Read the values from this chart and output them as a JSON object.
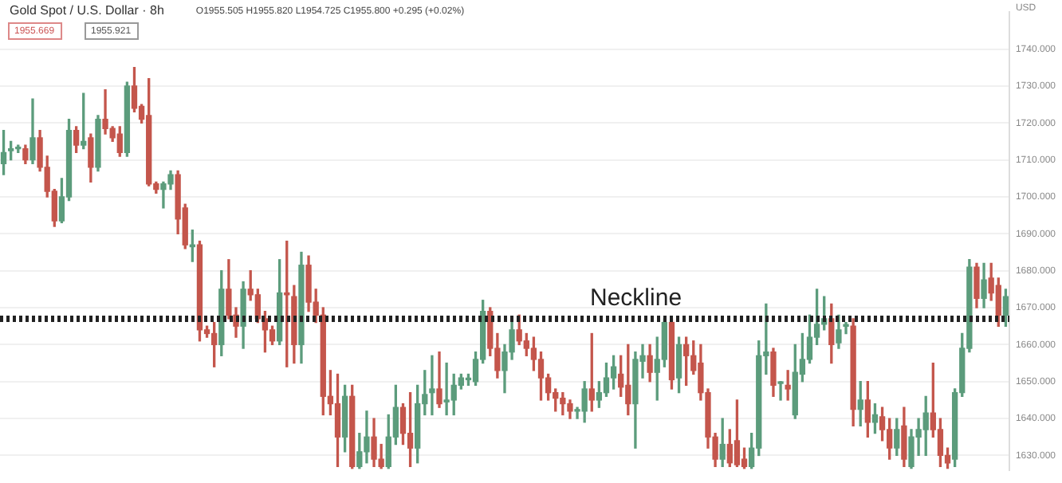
{
  "chart_data": {
    "type": "candlestick",
    "title": "Gold Spot / U.S. Dollar · 8h",
    "ylabel": "USD",
    "annotations": [
      "O1955.505 H1955.820 L1954.725 C1955.800 +0.295 (+0.02%)",
      "1955.669",
      "1955.921"
    ],
    "categories": [
      null,
      null,
      null,
      null,
      null,
      null,
      null,
      null,
      null,
      null,
      null,
      null,
      null,
      null,
      null,
      null,
      null,
      null,
      null,
      null,
      null,
      null,
      null,
      null,
      null,
      null,
      null,
      null,
      null,
      null,
      null,
      null,
      null,
      null,
      null,
      null,
      null,
      null,
      null,
      null,
      null,
      null,
      null,
      null,
      null,
      null,
      null,
      null,
      null,
      null,
      null,
      null,
      null,
      null,
      null,
      null,
      null,
      null,
      null,
      null,
      null,
      null,
      null,
      null,
      null,
      null,
      null,
      null,
      null,
      null,
      null,
      null,
      null,
      null,
      null,
      null,
      null,
      null,
      null,
      null,
      null,
      null,
      null,
      null,
      null,
      null,
      null,
      null,
      null,
      null,
      null,
      null,
      null,
      null,
      null,
      null,
      null,
      null,
      null,
      null,
      null,
      null,
      null,
      null,
      null,
      null,
      null,
      null,
      null,
      null,
      null,
      null,
      null,
      null,
      null,
      null,
      null,
      null,
      null,
      null,
      null,
      null,
      null,
      null,
      null,
      null,
      null,
      null,
      null,
      null,
      null,
      null,
      null,
      null,
      null,
      null,
      null,
      null,
      null
    ],
    "ohlc": [
      [
        1709,
        1718,
        1706,
        1712
      ],
      [
        1712.5,
        1715,
        1710,
        1713
      ],
      [
        1713,
        1714,
        1712,
        1713.2
      ],
      [
        1713,
        1714,
        1709,
        1710
      ],
      [
        1710,
        1726.5,
        1709,
        1716
      ],
      [
        1716,
        1718,
        1707,
        1708
      ],
      [
        1708,
        1711,
        1700,
        1701.5
      ],
      [
        1701.5,
        1702,
        1692,
        1693.5
      ],
      [
        1693.5,
        1705,
        1693,
        1700
      ],
      [
        1700,
        1721,
        1699,
        1718
      ],
      [
        1718,
        1719,
        1712,
        1714
      ],
      [
        1714,
        1728,
        1713,
        1715
      ],
      [
        1716,
        1717,
        1704,
        1708
      ],
      [
        1708,
        1722,
        1707,
        1721
      ],
      [
        1721,
        1729,
        1717,
        1718.5
      ],
      [
        1718.5,
        1719,
        1715,
        1716
      ],
      [
        1717,
        1719,
        1711,
        1712
      ],
      [
        1712,
        1731,
        1711,
        1730
      ],
      [
        1730,
        1735,
        1723,
        1724
      ],
      [
        1724.5,
        1725,
        1720,
        1721
      ],
      [
        1722,
        1732,
        1703,
        1703.5
      ],
      [
        1703.5,
        1704,
        1701,
        1702
      ],
      [
        1702,
        1704,
        1697,
        1703.5
      ],
      [
        1703.5,
        1707,
        1702,
        1706
      ],
      [
        1706,
        1707,
        1690,
        1694
      ],
      [
        1697,
        1698,
        1686,
        1687
      ],
      [
        1686.5,
        1691,
        1682.5,
        1687
      ],
      [
        1687,
        1688,
        1661,
        1664
      ],
      [
        1664,
        1665,
        1662,
        1663
      ],
      [
        1663,
        1666,
        1654,
        1660
      ],
      [
        1660,
        1680,
        1657,
        1675
      ],
      [
        1675,
        1683,
        1667,
        1668
      ],
      [
        1668,
        1670,
        1662,
        1665
      ],
      [
        1665,
        1677,
        1659,
        1675
      ],
      [
        1675,
        1680,
        1672,
        1673.5
      ],
      [
        1673.5,
        1675,
        1666,
        1667
      ],
      [
        1667,
        1669,
        1658,
        1664
      ],
      [
        1664,
        1665,
        1660,
        1661
      ],
      [
        1661,
        1683,
        1660,
        1674
      ],
      [
        1674,
        1688,
        1654,
        1673.5
      ],
      [
        1673,
        1676,
        1655,
        1660
      ],
      [
        1660,
        1685,
        1655,
        1681.5
      ],
      [
        1681.5,
        1684,
        1669,
        1671.5
      ],
      [
        1671.5,
        1675,
        1666,
        1668
      ],
      [
        1668,
        1670,
        1641,
        1646
      ],
      [
        1646,
        1653,
        1641,
        1644
      ],
      [
        1644,
        1652,
        1627,
        1635
      ],
      [
        1635,
        1649,
        1631,
        1646
      ],
      [
        1646,
        1649,
        1626.5,
        1627
      ],
      [
        1627,
        1636,
        1626.5,
        1631
      ],
      [
        1631,
        1642,
        1628,
        1635
      ],
      [
        1635,
        1640,
        1627,
        1629
      ],
      [
        1629,
        1633,
        1626.5,
        1627
      ],
      [
        1627,
        1641,
        1626.5,
        1635
      ],
      [
        1635,
        1649,
        1633,
        1643
      ],
      [
        1643,
        1644,
        1633,
        1636
      ],
      [
        1636,
        1647,
        1627,
        1632
      ],
      [
        1632,
        1649,
        1628,
        1644
      ],
      [
        1644,
        1653,
        1641,
        1646.5
      ],
      [
        1647,
        1657,
        1641,
        1648
      ],
      [
        1648,
        1658,
        1643,
        1644
      ],
      [
        1644.5,
        1655,
        1641,
        1645
      ],
      [
        1645,
        1652,
        1641,
        1649
      ],
      [
        1649,
        1652,
        1648,
        1651
      ],
      [
        1650.5,
        1652,
        1649,
        1650.7
      ],
      [
        1650,
        1658,
        1649,
        1656
      ],
      [
        1656,
        1672,
        1655,
        1669
      ],
      [
        1669,
        1670,
        1657,
        1659
      ],
      [
        1659,
        1663,
        1651,
        1653
      ],
      [
        1653,
        1660,
        1647,
        1658
      ],
      [
        1658,
        1666,
        1656,
        1664
      ],
      [
        1664,
        1668,
        1660,
        1661
      ],
      [
        1661,
        1663,
        1657,
        1659
      ],
      [
        1659,
        1662,
        1653,
        1656
      ],
      [
        1656,
        1658,
        1645,
        1651
      ],
      [
        1651,
        1652,
        1645,
        1647
      ],
      [
        1647,
        1648,
        1642,
        1645.5
      ],
      [
        1645.5,
        1647,
        1641,
        1644
      ],
      [
        1644,
        1645,
        1640,
        1642
      ],
      [
        1642,
        1643,
        1640,
        1642.2
      ],
      [
        1642,
        1650,
        1639,
        1648
      ],
      [
        1648,
        1663,
        1642,
        1645
      ],
      [
        1645,
        1650,
        1643,
        1647
      ],
      [
        1647,
        1655,
        1646,
        1651
      ],
      [
        1651,
        1657,
        1648,
        1654
      ],
      [
        1652,
        1657,
        1646,
        1648.5
      ],
      [
        1649,
        1660,
        1641,
        1644
      ],
      [
        1644,
        1658,
        1632,
        1656
      ],
      [
        1655.5,
        1660,
        1651,
        1657
      ],
      [
        1657,
        1660,
        1650,
        1652.5
      ],
      [
        1652.5,
        1662,
        1645,
        1656
      ],
      [
        1656,
        1667,
        1654,
        1666
      ],
      [
        1666,
        1667,
        1648,
        1650.5
      ],
      [
        1651,
        1662,
        1647,
        1660
      ],
      [
        1660,
        1662,
        1649,
        1657
      ],
      [
        1657,
        1661,
        1652,
        1653
      ],
      [
        1655,
        1660,
        1645,
        1647
      ],
      [
        1647,
        1648,
        1632,
        1635
      ],
      [
        1635,
        1636,
        1627,
        1629
      ],
      [
        1629,
        1640,
        1627,
        1633
      ],
      [
        1633,
        1637,
        1627,
        1628
      ],
      [
        1634,
        1645,
        1627,
        1627.5
      ],
      [
        1629,
        1632,
        1626.5,
        1627
      ],
      [
        1627,
        1636,
        1626.5,
        1632
      ],
      [
        1632,
        1661,
        1630,
        1657
      ],
      [
        1657,
        1671,
        1652,
        1658
      ],
      [
        1658,
        1659,
        1646,
        1649
      ],
      [
        1649.5,
        1650,
        1645,
        1649.7
      ],
      [
        1649,
        1653,
        1645,
        1648
      ],
      [
        1641,
        1660,
        1640,
        1652.5
      ],
      [
        1652,
        1663,
        1650,
        1656
      ],
      [
        1656,
        1668,
        1655,
        1662
      ],
      [
        1662,
        1675,
        1660,
        1665.5
      ],
      [
        1665.5,
        1673,
        1664,
        1667
      ],
      [
        1667,
        1671,
        1655,
        1660
      ],
      [
        1660.5,
        1668,
        1659,
        1664
      ],
      [
        1665,
        1666,
        1663,
        1665.2
      ],
      [
        1665,
        1667,
        1638,
        1642.5
      ],
      [
        1642.5,
        1650,
        1638,
        1645
      ],
      [
        1645,
        1650,
        1635,
        1639
      ],
      [
        1639,
        1644,
        1636,
        1641
      ],
      [
        1640.5,
        1643,
        1634,
        1637
      ],
      [
        1637,
        1640,
        1629,
        1632
      ],
      [
        1632,
        1640,
        1630,
        1637
      ],
      [
        1638,
        1643,
        1627,
        1629
      ],
      [
        1627,
        1637,
        1626.5,
        1635
      ],
      [
        1635,
        1640,
        1630,
        1637
      ],
      [
        1637,
        1646,
        1630,
        1641.5
      ],
      [
        1641.5,
        1655,
        1635,
        1637
      ],
      [
        1637,
        1640,
        1627,
        1630
      ],
      [
        1630,
        1632,
        1626.5,
        1628
      ],
      [
        1629,
        1648,
        1627,
        1647
      ],
      [
        1647,
        1663,
        1646,
        1659
      ],
      [
        1659,
        1683,
        1658,
        1681
      ],
      [
        1681,
        1682,
        1670,
        1672.5
      ],
      [
        1672.5,
        1682,
        1670,
        1677.5
      ],
      [
        1678,
        1682,
        1672,
        1674
      ],
      [
        1676,
        1678,
        1665,
        1668
      ],
      [
        1668,
        1675,
        1665,
        1673
      ]
    ],
    "colors": [
      "#5c9c7c",
      "#5c9c7c",
      "#5c9c7c",
      "#c4564c",
      "#5c9c7c",
      "#c4564c",
      "#c4564c",
      "#c4564c",
      "#5c9c7c",
      "#5c9c7c",
      "#c4564c",
      "#5c9c7c",
      "#c4564c",
      "#5c9c7c",
      "#c4564c",
      "#c4564c",
      "#c4564c",
      "#5c9c7c",
      "#c4564c",
      "#c4564c",
      "#c4564c",
      "#c4564c",
      "#5c9c7c",
      "#5c9c7c",
      "#c4564c",
      "#c4564c",
      "#5c9c7c",
      "#c4564c",
      "#c4564c",
      "#c4564c",
      "#5c9c7c",
      "#c4564c",
      "#c4564c",
      "#5c9c7c",
      "#c4564c",
      "#c4564c",
      "#c4564c",
      "#c4564c",
      "#5c9c7c",
      "#c4564c",
      "#c4564c",
      "#5c9c7c",
      "#c4564c",
      "#c4564c",
      "#c4564c",
      "#c4564c",
      "#c4564c",
      "#5c9c7c",
      "#c4564c",
      "#5c9c7c",
      "#5c9c7c",
      "#c4564c",
      "#c4564c",
      "#5c9c7c",
      "#5c9c7c",
      "#c4564c",
      "#c4564c",
      "#5c9c7c",
      "#5c9c7c",
      "#5c9c7c",
      "#c4564c",
      "#5c9c7c",
      "#5c9c7c",
      "#5c9c7c",
      "#5c9c7c",
      "#5c9c7c",
      "#5c9c7c",
      "#c4564c",
      "#c4564c",
      "#5c9c7c",
      "#5c9c7c",
      "#c4564c",
      "#c4564c",
      "#c4564c",
      "#c4564c",
      "#c4564c",
      "#c4564c",
      "#c4564c",
      "#c4564c",
      "#5c9c7c",
      "#5c9c7c",
      "#c4564c",
      "#5c9c7c",
      "#5c9c7c",
      "#5c9c7c",
      "#c4564c",
      "#c4564c",
      "#5c9c7c",
      "#5c9c7c",
      "#c4564c",
      "#5c9c7c",
      "#5c9c7c",
      "#c4564c",
      "#5c9c7c",
      "#c4564c",
      "#c4564c",
      "#c4564c",
      "#c4564c",
      "#c4564c",
      "#5c9c7c",
      "#c4564c",
      "#c4564c",
      "#c4564c",
      "#5c9c7c",
      "#5c9c7c",
      "#5c9c7c",
      "#c4564c",
      "#5c9c7c",
      "#c4564c",
      "#5c9c7c",
      "#5c9c7c",
      "#5c9c7c",
      "#5c9c7c",
      "#5c9c7c",
      "#c4564c",
      "#5c9c7c",
      "#5c9c7c",
      "#c4564c",
      "#5c9c7c",
      "#c4564c",
      "#5c9c7c",
      "#c4564c",
      "#c4564c",
      "#5c9c7c",
      "#c4564c",
      "#5c9c7c",
      "#5c9c7c",
      "#5c9c7c",
      "#c4564c",
      "#c4564c",
      "#c4564c",
      "#5c9c7c",
      "#5c9c7c",
      "#5c9c7c",
      "#c4564c",
      "#5c9c7c",
      "#c4564c",
      "#c4564c",
      "#5c9c7c"
    ],
    "ylim": [
      1626,
      1750
    ],
    "yticks": [
      {
        "value": 1630,
        "label": "1630.000"
      },
      {
        "value": 1640,
        "label": "1640.000"
      },
      {
        "value": 1650,
        "label": "1650.000"
      },
      {
        "value": 1660,
        "label": "1660.000"
      },
      {
        "value": 1670,
        "label": "1670.000"
      },
      {
        "value": 1680,
        "label": "1680.000"
      },
      {
        "value": 1690,
        "label": "1690.000"
      },
      {
        "value": 1700,
        "label": "1700.000"
      },
      {
        "value": 1710,
        "label": "1710.000"
      },
      {
        "value": 1720,
        "label": "1720.000"
      },
      {
        "value": 1730,
        "label": "1730.000"
      },
      {
        "value": 1740,
        "label": "1740.000"
      }
    ],
    "ref_lines": [
      {
        "axis": "y",
        "value": 1667,
        "label": "Neckline",
        "color": "#222222",
        "line_style": "dotted"
      }
    ],
    "grid": "y",
    "legend": false
  }
}
